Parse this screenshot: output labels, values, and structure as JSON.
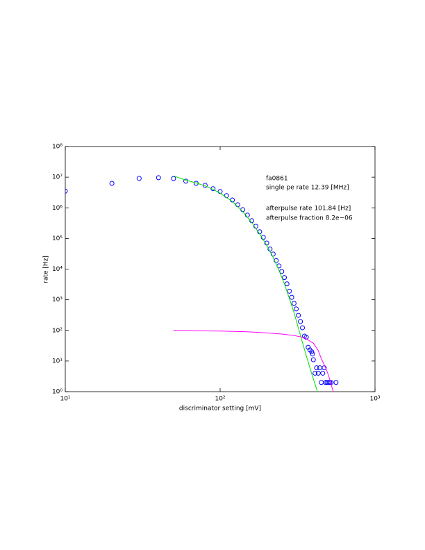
{
  "chart_data": {
    "type": "scatter",
    "xlabel": "discriminator setting [mV]",
    "ylabel": "rate [Hz]",
    "xlog": true,
    "ylog": true,
    "xlim": [
      10,
      1000
    ],
    "ylim": [
      1,
      100000000
    ],
    "xticks": [
      {
        "value": 10,
        "label": "10¹"
      },
      {
        "value": 100,
        "label": "10²"
      },
      {
        "value": 1000,
        "label": "10³"
      }
    ],
    "yticks": [
      {
        "value": 1,
        "label": "10⁰"
      },
      {
        "value": 10,
        "label": "10¹"
      },
      {
        "value": 100,
        "label": "10²"
      },
      {
        "value": 1000,
        "label": "10³"
      },
      {
        "value": 10000,
        "label": "10⁴"
      },
      {
        "value": 100000,
        "label": "10⁵"
      },
      {
        "value": 1000000,
        "label": "10⁶"
      },
      {
        "value": 10000000,
        "label": "10⁷"
      },
      {
        "value": 100000000,
        "label": "10⁸"
      }
    ],
    "annotations": [
      "fa0861",
      "single pe rate 12.39 [MHz]",
      "afterpulse rate 101.84 [Hz]",
      "afterpulse fraction 8.2e−06"
    ],
    "series": [
      {
        "type": "scatter",
        "color": "#0000ff",
        "x": [
          10,
          20,
          30,
          40,
          50,
          60,
          70,
          80,
          90,
          100,
          110,
          120,
          130,
          140,
          150,
          160,
          170,
          180,
          190,
          200,
          210,
          220,
          230,
          240,
          250,
          260,
          270,
          280,
          290,
          300,
          310,
          320,
          330,
          340,
          350,
          360,
          370,
          380,
          390,
          395,
          400,
          410,
          420,
          430,
          440,
          450,
          460,
          470,
          480,
          490,
          500,
          510,
          520,
          560
        ],
        "values": [
          3500000,
          6300000,
          9100000,
          9600000,
          9000000,
          7400000,
          6300000,
          5400000,
          4200000,
          3400000,
          2500000,
          1800000,
          1260000,
          870000,
          580000,
          380000,
          250000,
          165000,
          108000,
          71000,
          45000,
          31000,
          19000,
          12700,
          8400,
          5300,
          3300,
          1900,
          1200,
          760,
          500,
          310,
          195,
          122,
          65,
          60,
          28,
          23,
          20,
          17,
          11,
          4,
          6,
          4,
          6,
          2,
          4,
          6,
          2,
          2,
          2,
          2,
          2,
          2
        ]
      },
      {
        "type": "line",
        "color": "#00dd00",
        "x": [
          50,
          60,
          70,
          80,
          90,
          100,
          120,
          140,
          160,
          180,
          200,
          220,
          240,
          260,
          280,
          300,
          320,
          340,
          360,
          380,
          400,
          420,
          440
        ],
        "values": [
          11000000,
          8000000,
          6500000,
          5200000,
          4000000,
          3000000,
          1600000,
          750000,
          330000,
          140000,
          60000,
          24000,
          9000,
          3300,
          1100,
          380,
          120,
          40,
          15,
          6,
          2.6,
          1.2,
          0.6
        ]
      },
      {
        "type": "line",
        "color": "#ff00ff",
        "x": [
          50,
          100,
          150,
          200,
          250,
          300,
          350,
          400,
          430,
          450,
          480,
          500,
          520,
          540
        ],
        "values": [
          100,
          95,
          90,
          83,
          76,
          68,
          58,
          38,
          22,
          12,
          6,
          3.5,
          1.8,
          0.9
        ]
      }
    ]
  }
}
